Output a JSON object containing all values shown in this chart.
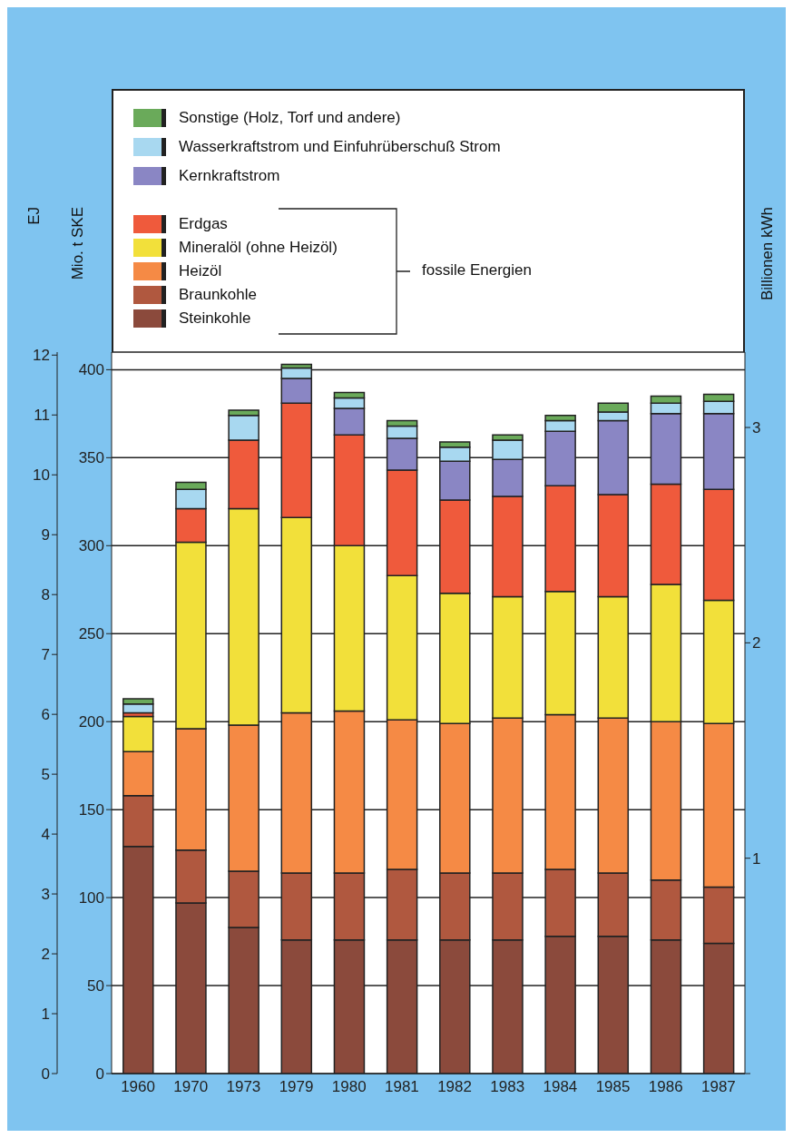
{
  "chart_data": {
    "type": "bar",
    "stacked": true,
    "categories": [
      "1960",
      "1970",
      "1973",
      "1979",
      "1980",
      "1981",
      "1982",
      "1983",
      "1984",
      "1985",
      "1986",
      "1987"
    ],
    "series": [
      {
        "name": "Steinkohle",
        "color": "#8b4a3c",
        "values": [
          129,
          97,
          83,
          76,
          76,
          76,
          76,
          76,
          78,
          78,
          76,
          74
        ]
      },
      {
        "name": "Braunkohle",
        "color": "#b0583f",
        "values": [
          29,
          30,
          32,
          38,
          38,
          40,
          38,
          38,
          38,
          36,
          34,
          32
        ]
      },
      {
        "name": "Heizöl",
        "color": "#f58a45",
        "values": [
          25,
          69,
          83,
          91,
          92,
          85,
          85,
          88,
          88,
          88,
          90,
          93
        ]
      },
      {
        "name": "Mineralöl (ohne Heizöl)",
        "color": "#f2e03a",
        "values": [
          20,
          106,
          123,
          111,
          94,
          82,
          74,
          69,
          70,
          69,
          78,
          70
        ]
      },
      {
        "name": "Erdgas",
        "color": "#ef5a3c",
        "values": [
          2,
          19,
          39,
          65,
          63,
          60,
          53,
          57,
          60,
          58,
          57,
          63
        ]
      },
      {
        "name": "Kernkraftstrom",
        "color": "#8a86c4",
        "values": [
          0,
          0,
          0,
          14,
          15,
          18,
          22,
          21,
          31,
          42,
          40,
          43
        ]
      },
      {
        "name": "Wasserkraftstrom und Einfuhrüberschuß Strom",
        "color": "#a8d8f0",
        "values": [
          5,
          11,
          14,
          6,
          6,
          7,
          8,
          11,
          6,
          5,
          6,
          7
        ]
      },
      {
        "name": "Sonstige (Holz, Torf und andere)",
        "color": "#6aaa5a",
        "values": [
          3,
          4,
          3,
          2,
          3,
          3,
          3,
          3,
          3,
          5,
          4,
          4
        ]
      }
    ],
    "ylabel": "Mio. t SKE",
    "ylim": [
      0,
      410
    ],
    "yticks": [
      0,
      50,
      100,
      150,
      200,
      250,
      300,
      350,
      400
    ],
    "y2label": "Billionen kWh",
    "y2lim": [
      0,
      3.35
    ],
    "y2ticks": [
      {
        "value": 0,
        "label": null
      },
      1,
      2,
      3
    ],
    "y3label": "EJ",
    "y3lim": [
      0,
      12.05
    ],
    "y3ticks": [
      0,
      1,
      2,
      3,
      4,
      5,
      6,
      7,
      8,
      9,
      10,
      11,
      12
    ],
    "annotations": [
      "fossile Energien"
    ],
    "grid": "y",
    "legend": "top left"
  }
}
